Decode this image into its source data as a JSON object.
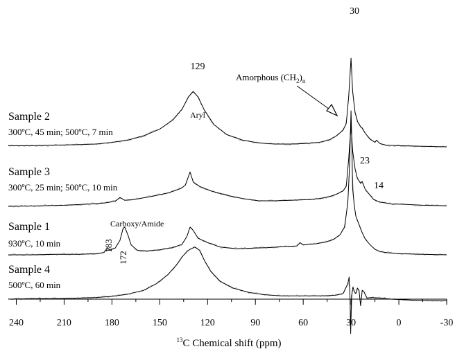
{
  "chart_data": {
    "type": "line",
    "title": "",
    "xlabel": "13C Chemical shift (ppm)",
    "xlabel_superscript": "13",
    "xlabel_rest": "C Chemical shift (ppm)",
    "ylabel": "",
    "xlim": [
      245,
      -30
    ],
    "x_reversed": true,
    "x_ticks": [
      240,
      210,
      180,
      150,
      120,
      90,
      60,
      30,
      0,
      -30
    ],
    "grid": false,
    "legend": "none",
    "series": [
      {
        "name": "Sample 2",
        "condition": "300ºC, 45 min; 500ºC, 7 min",
        "points": [
          [
            245,
            0.02
          ],
          [
            230,
            0.02
          ],
          [
            215,
            0.03
          ],
          [
            200,
            0.04
          ],
          [
            190,
            0.05
          ],
          [
            180,
            0.08
          ],
          [
            170,
            0.12
          ],
          [
            160,
            0.2
          ],
          [
            150,
            0.32
          ],
          [
            142,
            0.48
          ],
          [
            136,
            0.68
          ],
          [
            132,
            0.9
          ],
          [
            129,
            1.0
          ],
          [
            126,
            0.9
          ],
          [
            122,
            0.66
          ],
          [
            116,
            0.4
          ],
          [
            108,
            0.22
          ],
          [
            98,
            0.12
          ],
          [
            88,
            0.07
          ],
          [
            78,
            0.05
          ],
          [
            68,
            0.05
          ],
          [
            58,
            0.06
          ],
          [
            50,
            0.08
          ],
          [
            44,
            0.12
          ],
          [
            39,
            0.2
          ],
          [
            35,
            0.3
          ],
          [
            33,
            0.42
          ],
          [
            31.5,
            0.9
          ],
          [
            30,
            1.6
          ],
          [
            29,
            1.0
          ],
          [
            27.5,
            0.62
          ],
          [
            26,
            0.46
          ],
          [
            24,
            0.36
          ],
          [
            23,
            0.34
          ],
          [
            21,
            0.24
          ],
          [
            18,
            0.14
          ],
          [
            15,
            0.08
          ],
          [
            14,
            0.12
          ],
          [
            12,
            0.06
          ],
          [
            8,
            0.03
          ],
          [
            0,
            0.02
          ],
          [
            -15,
            0.01
          ],
          [
            -30,
            0.0
          ]
        ]
      },
      {
        "name": "Sample 3",
        "condition": "300ºC, 25 min; 500ºC, 10 min",
        "points": [
          [
            245,
            0.0
          ],
          [
            225,
            0.01
          ],
          [
            210,
            0.02
          ],
          [
            195,
            0.04
          ],
          [
            185,
            0.06
          ],
          [
            178,
            0.09
          ],
          [
            175,
            0.16
          ],
          [
            172,
            0.11
          ],
          [
            165,
            0.13
          ],
          [
            155,
            0.18
          ],
          [
            145,
            0.24
          ],
          [
            137,
            0.32
          ],
          [
            134,
            0.38
          ],
          [
            131,
            0.62
          ],
          [
            129,
            0.44
          ],
          [
            125,
            0.36
          ],
          [
            118,
            0.28
          ],
          [
            108,
            0.2
          ],
          [
            98,
            0.14
          ],
          [
            88,
            0.1
          ],
          [
            78,
            0.1
          ],
          [
            68,
            0.11
          ],
          [
            58,
            0.12
          ],
          [
            50,
            0.14
          ],
          [
            44,
            0.17
          ],
          [
            39,
            0.22
          ],
          [
            35,
            0.28
          ],
          [
            33,
            0.36
          ],
          [
            31.5,
            0.85
          ],
          [
            30,
            1.46
          ],
          [
            29,
            1.0
          ],
          [
            27.5,
            0.68
          ],
          [
            26,
            0.5
          ],
          [
            24,
            0.42
          ],
          [
            23,
            0.45
          ],
          [
            21,
            0.3
          ],
          [
            18,
            0.2
          ],
          [
            16,
            0.13
          ],
          [
            14,
            0.1
          ],
          [
            12,
            0.08
          ],
          [
            8,
            0.06
          ],
          [
            4,
            0.04
          ],
          [
            0,
            0.04
          ],
          [
            -15,
            0.02
          ],
          [
            -30,
            0.01
          ]
        ]
      },
      {
        "name": "Sample 1",
        "condition": "930ºC, 10 min",
        "points": [
          [
            245,
            0.0
          ],
          [
            230,
            0.0
          ],
          [
            215,
            0.01
          ],
          [
            200,
            0.01
          ],
          [
            190,
            0.02
          ],
          [
            185,
            0.04
          ],
          [
            183,
            0.12
          ],
          [
            181,
            0.09
          ],
          [
            178,
            0.12
          ],
          [
            175,
            0.26
          ],
          [
            173,
            0.48
          ],
          [
            172,
            0.5
          ],
          [
            170,
            0.36
          ],
          [
            168,
            0.18
          ],
          [
            164,
            0.08
          ],
          [
            158,
            0.07
          ],
          [
            150,
            0.09
          ],
          [
            142,
            0.13
          ],
          [
            136,
            0.19
          ],
          [
            133,
            0.33
          ],
          [
            131,
            0.5
          ],
          [
            129,
            0.44
          ],
          [
            126,
            0.3
          ],
          [
            120,
            0.22
          ],
          [
            112,
            0.14
          ],
          [
            102,
            0.11
          ],
          [
            92,
            0.12
          ],
          [
            82,
            0.13
          ],
          [
            72,
            0.15
          ],
          [
            64,
            0.16
          ],
          [
            62,
            0.22
          ],
          [
            60,
            0.18
          ],
          [
            52,
            0.2
          ],
          [
            46,
            0.23
          ],
          [
            41,
            0.28
          ],
          [
            37,
            0.36
          ],
          [
            34,
            0.5
          ],
          [
            32,
            0.95
          ],
          [
            31,
            1.55
          ],
          [
            30,
            2.6
          ],
          [
            29.5,
            2.0
          ],
          [
            29,
            1.2
          ],
          [
            28,
            0.9
          ],
          [
            27,
            0.7
          ],
          [
            25,
            0.55
          ],
          [
            23,
            0.4
          ],
          [
            21,
            0.28
          ],
          [
            18,
            0.18
          ],
          [
            15,
            0.1
          ],
          [
            12,
            0.06
          ],
          [
            8,
            0.04
          ],
          [
            0,
            0.02
          ],
          [
            -15,
            0.01
          ],
          [
            -30,
            0.0
          ]
        ]
      },
      {
        "name": "Sample 4",
        "condition": "500ºC, 60 min",
        "points": [
          [
            245,
            0.0
          ],
          [
            230,
            0.01
          ],
          [
            215,
            0.01
          ],
          [
            200,
            0.02
          ],
          [
            190,
            0.03
          ],
          [
            180,
            0.05
          ],
          [
            170,
            0.09
          ],
          [
            160,
            0.16
          ],
          [
            152,
            0.28
          ],
          [
            145,
            0.44
          ],
          [
            140,
            0.6
          ],
          [
            136,
            0.76
          ],
          [
            133,
            0.86
          ],
          [
            131,
            0.9
          ],
          [
            128,
            0.94
          ],
          [
            125,
            0.88
          ],
          [
            122,
            0.7
          ],
          [
            118,
            0.5
          ],
          [
            112,
            0.32
          ],
          [
            104,
            0.2
          ],
          [
            94,
            0.12
          ],
          [
            84,
            0.08
          ],
          [
            74,
            0.06
          ],
          [
            64,
            0.06
          ],
          [
            56,
            0.06
          ],
          [
            48,
            0.06
          ],
          [
            40,
            0.07
          ],
          [
            35,
            0.1
          ],
          [
            32,
            0.28
          ],
          [
            31.2,
            0.4
          ],
          [
            30.6,
            0.0
          ],
          [
            30.2,
            -0.62
          ],
          [
            29.7,
            0.05
          ],
          [
            28.8,
            0.22
          ],
          [
            28,
            0.14
          ],
          [
            27,
            0.1
          ],
          [
            26,
            0.2
          ],
          [
            25,
            0.16
          ],
          [
            24,
            -0.12
          ],
          [
            23,
            0.16
          ],
          [
            22,
            0.14
          ],
          [
            20,
            0.02
          ],
          [
            17,
            0.03
          ],
          [
            12,
            0.02
          ],
          [
            5,
            0.0
          ],
          [
            -10,
            -0.02
          ],
          [
            -30,
            -0.03
          ]
        ]
      }
    ],
    "annotations": {
      "peak_129": "129",
      "peak_30": "30",
      "peak_23": "23",
      "peak_14": "14",
      "peak_183": "183",
      "peak_172": "172",
      "aryl": "Aryl",
      "carboxy": "Carboxy/Amide",
      "amorphous_main": "Amorphous (CH",
      "amorphous_sub": "2",
      "amorphous_close": ")",
      "amorphous_n": "n"
    }
  }
}
